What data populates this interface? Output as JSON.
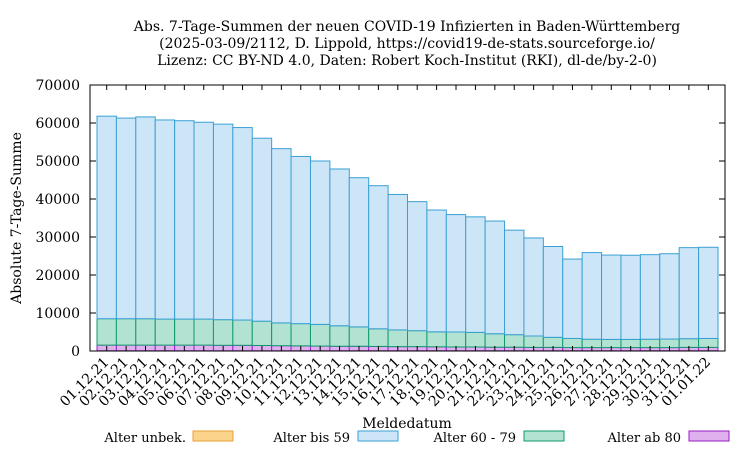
{
  "chart_data": {
    "type": "bar",
    "stacked": true,
    "title": "Abs. 7-Tage-Summen der neuen COVID-19 Infizierten in Baden-Württemberg",
    "subtitle1": "(2025-03-09/2112, D. Lippold, https://covid19-de-stats.sourceforge.io/",
    "subtitle2": "Lizenz: CC BY-ND 4.0, Daten: Robert Koch-Institut (RKI), dl-de/by-2-0)",
    "xlabel": "Meldedatum",
    "ylabel": "Absolute 7-Tage-Summe",
    "ylim": [
      0,
      70000
    ],
    "yticks": [
      0,
      10000,
      20000,
      30000,
      40000,
      50000,
      60000,
      70000
    ],
    "categories": [
      "01.12.21",
      "02.12.21",
      "03.12.21",
      "04.12.21",
      "05.12.21",
      "06.12.21",
      "07.12.21",
      "08.12.21",
      "09.12.21",
      "10.12.21",
      "11.12.21",
      "12.12.21",
      "13.12.21",
      "14.12.21",
      "15.12.21",
      "16.12.21",
      "17.12.21",
      "18.12.21",
      "19.12.21",
      "20.12.21",
      "21.12.21",
      "22.12.21",
      "23.12.21",
      "24.12.21",
      "25.12.21",
      "26.12.21",
      "27.12.21",
      "28.12.21",
      "29.12.21",
      "30.12.21",
      "31.12.21",
      "01.01.22"
    ],
    "series": [
      {
        "name": "Alter unbek.",
        "color": "#fbd38a",
        "edge": "#e8a33a",
        "values": [
          50,
          50,
          50,
          50,
          50,
          50,
          50,
          50,
          50,
          50,
          50,
          50,
          50,
          50,
          50,
          50,
          50,
          50,
          50,
          50,
          50,
          50,
          50,
          50,
          50,
          50,
          50,
          50,
          50,
          50,
          50,
          50
        ]
      },
      {
        "name": "Alter ab 80",
        "color": "#e0b0ee",
        "edge": "#9a1ec8",
        "values": [
          1500,
          1500,
          1500,
          1500,
          1500,
          1500,
          1450,
          1450,
          1400,
          1350,
          1300,
          1250,
          1200,
          1200,
          1150,
          1100,
          1100,
          1050,
          1000,
          1000,
          950,
          950,
          900,
          900,
          850,
          850,
          850,
          850,
          850,
          850,
          900,
          900
        ]
      },
      {
        "name": "Alter 60 - 79",
        "color": "#b2e2d2",
        "edge": "#0e9a6e",
        "values": [
          6950,
          6950,
          6950,
          6850,
          6850,
          6850,
          6750,
          6650,
          6400,
          6000,
          5850,
          5700,
          5400,
          5100,
          4650,
          4400,
          4200,
          3950,
          3950,
          3850,
          3550,
          3300,
          3000,
          2650,
          2400,
          2200,
          2150,
          2150,
          2200,
          2250,
          2300,
          2350
        ]
      },
      {
        "name": "Alter bis 59",
        "color": "#cce6f8",
        "edge": "#3aa0d4",
        "values": [
          53300,
          52800,
          53100,
          52400,
          52200,
          51800,
          51450,
          50650,
          48150,
          45850,
          44000,
          43000,
          41250,
          39250,
          37650,
          35650,
          33950,
          32050,
          30900,
          30400,
          29650,
          27500,
          25800,
          23900,
          20900,
          22800,
          22200,
          22150,
          22250,
          22450,
          23950,
          24000
        ]
      }
    ],
    "legend": [
      "Alter unbek.",
      "Alter bis 59",
      "Alter 60 - 79",
      "Alter ab 80"
    ],
    "legend_position": "bottom",
    "grid": false
  }
}
